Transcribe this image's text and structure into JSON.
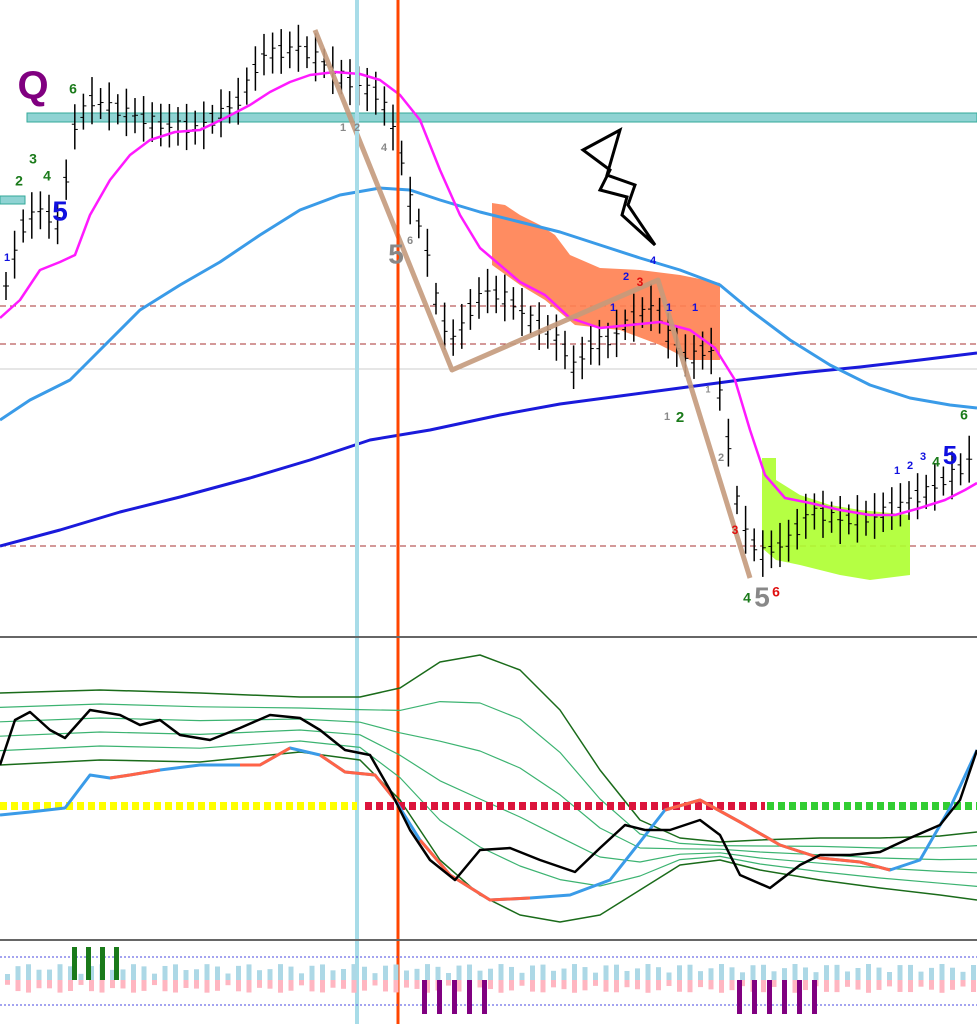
{
  "labels": [
    "Q",
    "6",
    "2",
    "3",
    "4",
    "5",
    "1",
    "1",
    "2",
    "4",
    "5",
    "6",
    "2",
    "3",
    "4",
    "1",
    "1",
    "1",
    "1",
    "2",
    "1",
    "2",
    "3",
    "4",
    "5",
    "6",
    "1",
    "2",
    "3",
    "4",
    "5",
    "6"
  ]
}
